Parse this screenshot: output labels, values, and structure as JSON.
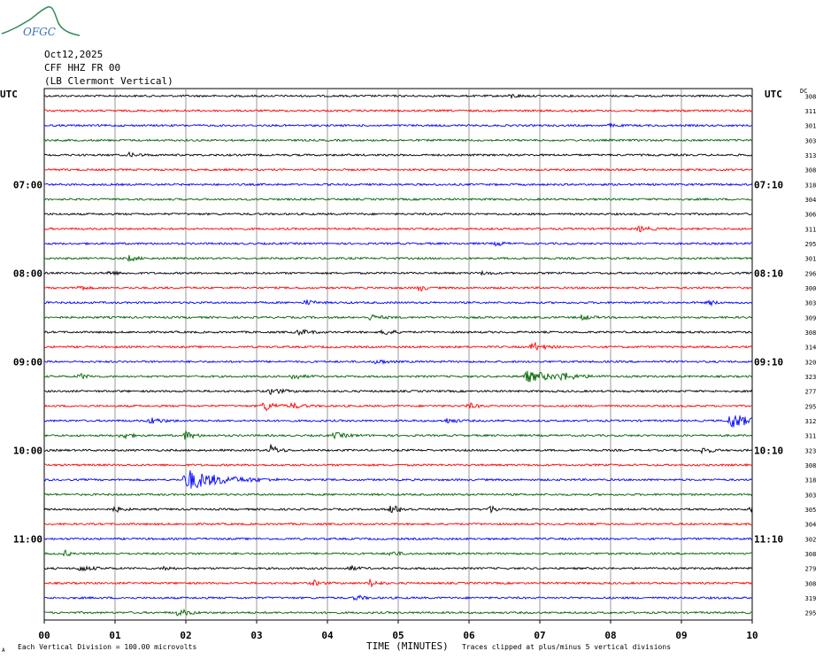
{
  "logo": {
    "text": "OFGC"
  },
  "header": {
    "date": "Oct12,2025",
    "station": "CFF HHZ FR 00",
    "location": "(LB  Clermont Vertical)"
  },
  "axis": {
    "left_unit": "UTC",
    "right_unit": "UTC",
    "dc_label": "DC",
    "x_label": "TIME (MINUTES)",
    "footer_left": "Each Vertical Division =  100.00 microvolts",
    "footer_right": "Traces clipped at plus/minus 5 vertical divisions",
    "corner_mark": "A"
  },
  "colors": {
    "trace_cycle": [
      "#000000",
      "#ff0000",
      "#0000ff",
      "#006400"
    ],
    "grid": "#808080"
  },
  "chart_data": {
    "type": "line",
    "x_ticks": [
      "00",
      "01",
      "02",
      "03",
      "04",
      "05",
      "06",
      "07",
      "08",
      "09",
      "10"
    ],
    "xlim": [
      0,
      10
    ],
    "left_hour_labels": [
      {
        "row": 6,
        "label": "07:00"
      },
      {
        "row": 12,
        "label": "08:00"
      },
      {
        "row": 18,
        "label": "09:00"
      },
      {
        "row": 24,
        "label": "10:00"
      },
      {
        "row": 30,
        "label": "11:00"
      }
    ],
    "right_hour_labels": [
      {
        "row": 6,
        "label": "07:10"
      },
      {
        "row": 12,
        "label": "08:10"
      },
      {
        "row": 18,
        "label": "09:10"
      },
      {
        "row": 24,
        "label": "10:10"
      },
      {
        "row": 30,
        "label": "11:10"
      }
    ],
    "dc_offsets": [
      "308",
      "311",
      "301",
      "303",
      "313",
      "308",
      "318",
      "304",
      "306",
      "311",
      "295",
      "301",
      "296",
      "300",
      "303",
      "309",
      "308",
      "314",
      "320",
      "323",
      "277",
      "295",
      "312",
      "311",
      "323",
      "308",
      "318",
      "303",
      "305",
      "304",
      "302",
      "308",
      "279",
      "308",
      "319",
      "295"
    ],
    "events": [
      {
        "row": 0,
        "minute": 6.6,
        "amp": 2,
        "dur": 0.3
      },
      {
        "row": 1,
        "minute": 7.4,
        "amp": 1.5,
        "dur": 0.2
      },
      {
        "row": 2,
        "minute": 8.0,
        "amp": 1.5,
        "dur": 0.2
      },
      {
        "row": 4,
        "minute": 1.2,
        "amp": 2,
        "dur": 0.4
      },
      {
        "row": 9,
        "minute": 8.4,
        "amp": 3,
        "dur": 0.4
      },
      {
        "row": 10,
        "minute": 6.4,
        "amp": 3,
        "dur": 0.2
      },
      {
        "row": 11,
        "minute": 1.2,
        "amp": 3,
        "dur": 0.3
      },
      {
        "row": 12,
        "minute": 0.9,
        "amp": 2,
        "dur": 0.4
      },
      {
        "row": 12,
        "minute": 6.2,
        "amp": 2,
        "dur": 0.3
      },
      {
        "row": 13,
        "minute": 0.5,
        "amp": 3,
        "dur": 0.2
      },
      {
        "row": 13,
        "minute": 5.3,
        "amp": 4,
        "dur": 0.2
      },
      {
        "row": 14,
        "minute": 3.7,
        "amp": 3,
        "dur": 0.3
      },
      {
        "row": 14,
        "minute": 9.4,
        "amp": 3,
        "dur": 0.2
      },
      {
        "row": 15,
        "minute": 4.6,
        "amp": 3,
        "dur": 0.4
      },
      {
        "row": 15,
        "minute": 7.6,
        "amp": 3,
        "dur": 0.3
      },
      {
        "row": 16,
        "minute": 3.6,
        "amp": 3,
        "dur": 0.4
      },
      {
        "row": 16,
        "minute": 4.8,
        "amp": 4,
        "dur": 0.3
      },
      {
        "row": 17,
        "minute": 6.9,
        "amp": 5,
        "dur": 0.4
      },
      {
        "row": 17,
        "minute": 7.0,
        "amp": 3,
        "dur": 0.3
      },
      {
        "row": 18,
        "minute": 4.7,
        "amp": 3,
        "dur": 0.3
      },
      {
        "row": 19,
        "minute": 0.5,
        "amp": 3,
        "dur": 0.3
      },
      {
        "row": 19,
        "minute": 3.5,
        "amp": 3,
        "dur": 0.4
      },
      {
        "row": 19,
        "minute": 6.8,
        "amp": 6,
        "dur": 1.2
      },
      {
        "row": 19,
        "minute": 7.3,
        "amp": 5,
        "dur": 0.6
      },
      {
        "row": 20,
        "minute": 3.2,
        "amp": 3,
        "dur": 0.5
      },
      {
        "row": 21,
        "minute": 3.1,
        "amp": 6,
        "dur": 0.4
      },
      {
        "row": 21,
        "minute": 3.5,
        "amp": 3,
        "dur": 0.4
      },
      {
        "row": 21,
        "minute": 6.0,
        "amp": 3,
        "dur": 0.3
      },
      {
        "row": 22,
        "minute": 1.5,
        "amp": 4,
        "dur": 0.4
      },
      {
        "row": 22,
        "minute": 5.7,
        "amp": 3,
        "dur": 0.3
      },
      {
        "row": 22,
        "minute": 9.7,
        "amp": 10,
        "dur": 0.6
      },
      {
        "row": 23,
        "minute": 1.1,
        "amp": 4,
        "dur": 0.3
      },
      {
        "row": 23,
        "minute": 2.0,
        "amp": 5,
        "dur": 0.3
      },
      {
        "row": 23,
        "minute": 4.1,
        "amp": 3,
        "dur": 0.5
      },
      {
        "row": 24,
        "minute": 3.2,
        "amp": 6,
        "dur": 0.3
      },
      {
        "row": 24,
        "minute": 9.3,
        "amp": 4,
        "dur": 0.3
      },
      {
        "row": 26,
        "minute": 2.0,
        "amp": 12,
        "dur": 1.3
      },
      {
        "row": 28,
        "minute": 1.0,
        "amp": 3,
        "dur": 0.3
      },
      {
        "row": 28,
        "minute": 4.9,
        "amp": 5,
        "dur": 0.4
      },
      {
        "row": 28,
        "minute": 6.3,
        "amp": 4,
        "dur": 0.3
      },
      {
        "row": 28,
        "minute": 10.0,
        "amp": 4,
        "dur": 0.1
      },
      {
        "row": 31,
        "minute": 0.3,
        "amp": 3,
        "dur": 0.2
      },
      {
        "row": 31,
        "minute": 4.9,
        "amp": 3,
        "dur": 0.3
      },
      {
        "row": 32,
        "minute": 0.5,
        "amp": 3,
        "dur": 0.5
      },
      {
        "row": 32,
        "minute": 1.7,
        "amp": 3,
        "dur": 0.2
      },
      {
        "row": 32,
        "minute": 4.3,
        "amp": 3,
        "dur": 0.3
      },
      {
        "row": 33,
        "minute": 3.8,
        "amp": 3,
        "dur": 0.3
      },
      {
        "row": 33,
        "minute": 4.6,
        "amp": 4,
        "dur": 0.3
      },
      {
        "row": 34,
        "minute": 4.4,
        "amp": 3,
        "dur": 0.3
      },
      {
        "row": 35,
        "minute": 1.9,
        "amp": 4,
        "dur": 0.4
      }
    ]
  }
}
